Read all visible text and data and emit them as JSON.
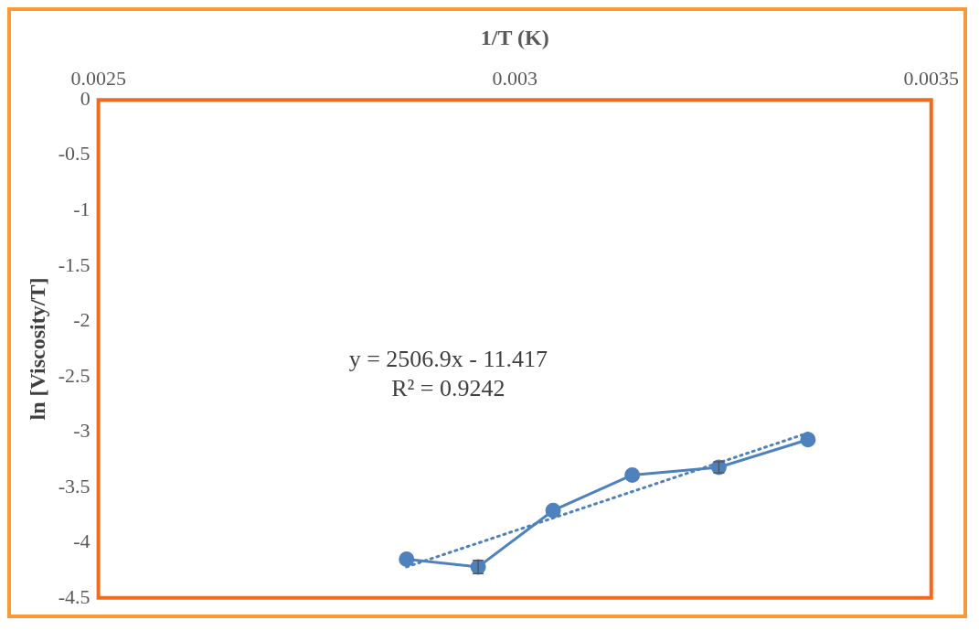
{
  "chart_data": {
    "type": "line",
    "xlabel": "1/T (K)",
    "ylabel": "ln [Viscosity/T]",
    "xlim": [
      0.0025,
      0.0035
    ],
    "xticks": [
      0.0025,
      0.003,
      0.0035
    ],
    "ylim": [
      -4.5,
      0
    ],
    "yticks": [
      0,
      -0.5,
      -1,
      -1.5,
      -2,
      -2.5,
      -3,
      -3.5,
      -4,
      -4.5
    ],
    "grid": false,
    "legend": false,
    "marker": "circle",
    "series": [
      {
        "color": "#4f81bd",
        "x": [
          0.00287,
          0.002956,
          0.003046,
          0.003141,
          0.003245,
          0.003352
        ],
        "values": [
          -4.15,
          -4.22,
          -3.71,
          -3.39,
          -3.32,
          -3.07
        ],
        "errors": [
          null,
          0.06,
          null,
          null,
          0.05,
          null
        ],
        "line_style": "solid"
      },
      {
        "color": "#4f81bd",
        "x": [
          0.00287,
          0.003352
        ],
        "values": [
          -4.22,
          -3.01
        ],
        "line_style": "dotted",
        "marker": "none"
      }
    ],
    "annotations": [
      "y = 2506.9x - 11.417",
      "R² = 0.9242"
    ]
  }
}
